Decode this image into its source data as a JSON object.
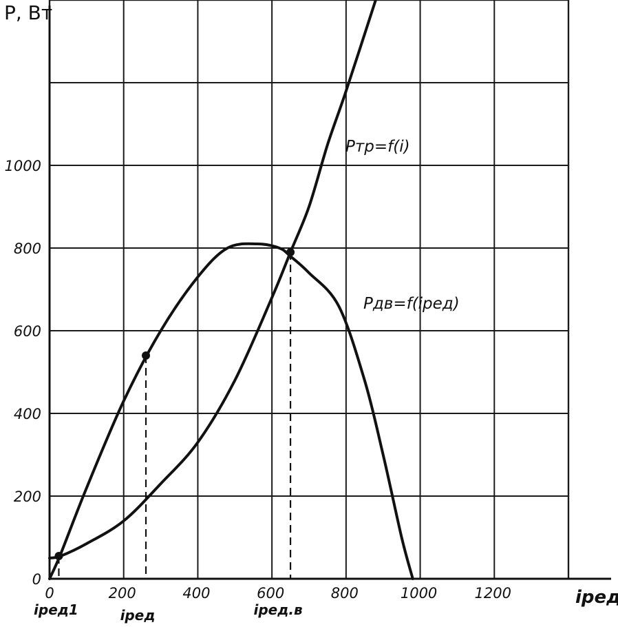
{
  "chart_data": {
    "type": "line",
    "ylabel": "P, Вт",
    "xlabel": "iред",
    "xlim": [
      0,
      1400
    ],
    "ylim": [
      0,
      1400
    ],
    "grid": true,
    "x_ticks": [
      0,
      200,
      400,
      600,
      800,
      1000,
      1200
    ],
    "y_ticks": [
      0,
      200,
      400,
      600,
      800,
      1000
    ],
    "series": [
      {
        "name": "Pтр=f(i)",
        "x": [
          0,
          30,
          100,
          200,
          300,
          400,
          500,
          600,
          650,
          700,
          750,
          800,
          880
        ],
        "y": [
          50,
          55,
          85,
          140,
          230,
          330,
          480,
          680,
          790,
          900,
          1050,
          1180,
          1400
        ]
      },
      {
        "name": "Pдв=f(iред)",
        "x": [
          0,
          30,
          100,
          200,
          300,
          400,
          480,
          560,
          620,
          650,
          700,
          780,
          850,
          900,
          950,
          980
        ],
        "y": [
          0,
          60,
          220,
          430,
          600,
          730,
          800,
          810,
          800,
          780,
          740,
          660,
          480,
          300,
          100,
          0
        ]
      }
    ],
    "markers": [
      {
        "label": "iред1",
        "x": 25,
        "y": 55
      },
      {
        "label": "iред",
        "x": 260,
        "y": 540
      },
      {
        "label": "iред.в",
        "x": 650,
        "y": 790
      }
    ]
  }
}
